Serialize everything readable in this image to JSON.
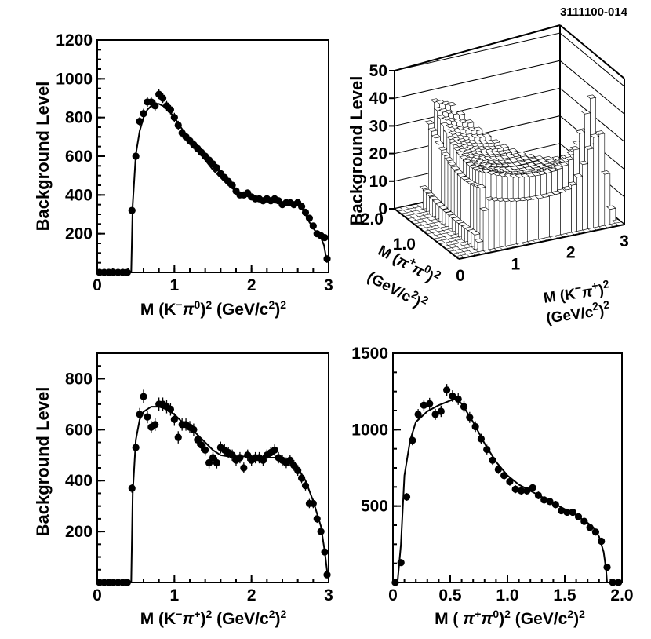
{
  "figure_id": "3111100-014",
  "y_axis_label": "Background Level",
  "chart_data": [
    {
      "id": "p1",
      "type": "scatter",
      "xlabel_parts": [
        "M (K",
        "−",
        "π",
        "0",
        ")",
        "2",
        " (GeV/c",
        "2",
        ")",
        "2"
      ],
      "ylabel": "Background Level",
      "xlim": [
        0,
        3
      ],
      "ylim": [
        0,
        1200
      ],
      "xticks": [
        0,
        1,
        2,
        3
      ],
      "yticks": [
        200,
        400,
        600,
        800,
        1000,
        1200
      ],
      "series": [
        {
          "kind": "points",
          "x": [
            0.03,
            0.09,
            0.15,
            0.21,
            0.27,
            0.33,
            0.39,
            0.45,
            0.5,
            0.55,
            0.6,
            0.65,
            0.7,
            0.75,
            0.8,
            0.85,
            0.9,
            0.95,
            1.0,
            1.05,
            1.1,
            1.15,
            1.2,
            1.25,
            1.3,
            1.35,
            1.4,
            1.45,
            1.5,
            1.55,
            1.6,
            1.65,
            1.7,
            1.75,
            1.8,
            1.85,
            1.9,
            1.95,
            2.0,
            2.05,
            2.1,
            2.15,
            2.2,
            2.25,
            2.3,
            2.35,
            2.4,
            2.45,
            2.5,
            2.55,
            2.6,
            2.65,
            2.7,
            2.75,
            2.8,
            2.85,
            2.9,
            2.95,
            2.98
          ],
          "y": [
            0,
            0,
            0,
            0,
            0,
            0,
            0,
            320,
            600,
            780,
            820,
            880,
            880,
            860,
            920,
            900,
            860,
            840,
            800,
            760,
            720,
            700,
            680,
            660,
            640,
            620,
            600,
            580,
            560,
            540,
            510,
            490,
            470,
            450,
            420,
            400,
            400,
            410,
            390,
            380,
            380,
            370,
            380,
            370,
            380,
            370,
            350,
            360,
            360,
            350,
            360,
            340,
            310,
            280,
            240,
            200,
            190,
            180,
            70
          ],
          "err": [
            0,
            0,
            0,
            0,
            0,
            0,
            0,
            15,
            20,
            22,
            25,
            25,
            25,
            25,
            25,
            25,
            25,
            24,
            24,
            23,
            23,
            22,
            22,
            22,
            21,
            21,
            21,
            20,
            20,
            20,
            19,
            19,
            18,
            18,
            18,
            17,
            17,
            17,
            17,
            17,
            17,
            16,
            16,
            16,
            16,
            16,
            16,
            16,
            16,
            16,
            16,
            16,
            15,
            15,
            14,
            13,
            13,
            12,
            9
          ]
        },
        {
          "kind": "curve",
          "x": [
            0.44,
            0.46,
            0.5,
            0.55,
            0.6,
            0.65,
            0.7,
            0.75,
            0.8,
            0.9,
            1.0,
            1.1,
            1.2,
            1.3,
            1.4,
            1.5,
            1.6,
            1.7,
            1.8,
            1.9,
            2.0,
            2.1,
            2.2,
            2.3,
            2.4,
            2.5,
            2.55,
            2.6,
            2.65,
            2.7,
            2.75,
            2.8,
            2.85,
            2.9,
            2.94,
            2.98
          ],
          "y": [
            0,
            350,
            610,
            730,
            800,
            840,
            860,
            870,
            870,
            850,
            800,
            740,
            690,
            630,
            580,
            530,
            490,
            450,
            420,
            400,
            385,
            375,
            370,
            360,
            360,
            358,
            355,
            350,
            330,
            300,
            260,
            230,
            200,
            180,
            140,
            50
          ]
        }
      ]
    },
    {
      "id": "p2",
      "type": "surface3d",
      "zlabel": "Background Level",
      "xlabel_parts": [
        "M (K",
        "−",
        "π",
        "+",
        ")",
        "2"
      ],
      "xlabel_line2_parts": [
        "(GeV/c",
        "2",
        ")",
        "2"
      ],
      "ylabel_parts": [
        "M (",
        "π",
        "+",
        "π",
        "0",
        ")",
        "2"
      ],
      "ylabel_line2_parts": [
        "(GeV/c",
        "2",
        ")",
        "2"
      ],
      "xlim": [
        0,
        3
      ],
      "ylim": [
        0,
        2.0
      ],
      "zlim": [
        0,
        50
      ],
      "xticks": [
        0,
        1,
        2,
        3
      ],
      "yticks": [
        "1.0",
        "2.0"
      ],
      "zticks": [
        0,
        10,
        20,
        30,
        40,
        50
      ]
    },
    {
      "id": "p3",
      "type": "scatter",
      "xlabel_parts": [
        "M (K",
        "−",
        "π",
        "+",
        ")",
        "2",
        " (GeV/c",
        "2",
        ")",
        "2"
      ],
      "ylabel": "Background Level",
      "xlim": [
        0,
        3
      ],
      "ylim": [
        0,
        900
      ],
      "xticks": [
        0,
        1,
        2,
        3
      ],
      "yticks": [
        200,
        400,
        600,
        800
      ],
      "series": [
        {
          "kind": "points",
          "x": [
            0.03,
            0.09,
            0.15,
            0.21,
            0.27,
            0.33,
            0.39,
            0.45,
            0.5,
            0.55,
            0.6,
            0.65,
            0.7,
            0.75,
            0.8,
            0.85,
            0.9,
            0.95,
            1.0,
            1.05,
            1.1,
            1.15,
            1.2,
            1.25,
            1.3,
            1.35,
            1.4,
            1.45,
            1.5,
            1.55,
            1.6,
            1.65,
            1.7,
            1.75,
            1.8,
            1.85,
            1.9,
            1.95,
            2.0,
            2.05,
            2.1,
            2.15,
            2.2,
            2.25,
            2.3,
            2.35,
            2.4,
            2.45,
            2.5,
            2.55,
            2.6,
            2.65,
            2.7,
            2.75,
            2.8,
            2.85,
            2.9,
            2.95,
            2.98
          ],
          "y": [
            0,
            0,
            0,
            0,
            0,
            0,
            0,
            370,
            530,
            660,
            730,
            650,
            610,
            620,
            700,
            700,
            690,
            680,
            640,
            570,
            620,
            620,
            610,
            600,
            560,
            540,
            520,
            470,
            490,
            470,
            530,
            520,
            510,
            500,
            480,
            490,
            450,
            500,
            480,
            490,
            490,
            480,
            500,
            510,
            520,
            490,
            480,
            470,
            480,
            460,
            440,
            410,
            380,
            310,
            310,
            250,
            200,
            120,
            30
          ],
          "err": [
            0,
            0,
            0,
            0,
            0,
            0,
            0,
            18,
            22,
            25,
            27,
            25,
            24,
            25,
            26,
            26,
            26,
            25,
            25,
            24,
            24,
            24,
            24,
            24,
            23,
            23,
            22,
            22,
            22,
            22,
            23,
            23,
            22,
            22,
            22,
            22,
            21,
            22,
            22,
            22,
            22,
            22,
            22,
            22,
            22,
            22,
            22,
            21,
            21,
            21,
            21,
            20,
            19,
            18,
            18,
            16,
            15,
            12,
            8
          ]
        },
        {
          "kind": "curve",
          "x": [
            0.44,
            0.46,
            0.5,
            0.55,
            0.6,
            0.7,
            0.8,
            0.9,
            1.0,
            1.1,
            1.2,
            1.3,
            1.4,
            1.5,
            1.6,
            1.7,
            1.8,
            1.9,
            2.0,
            2.1,
            2.2,
            2.3,
            2.4,
            2.5,
            2.6,
            2.7,
            2.8,
            2.9,
            2.95,
            2.99
          ],
          "y": [
            0,
            350,
            560,
            640,
            670,
            690,
            690,
            680,
            660,
            630,
            610,
            580,
            550,
            520,
            500,
            495,
            495,
            495,
            495,
            495,
            490,
            490,
            480,
            470,
            450,
            400,
            320,
            220,
            120,
            20
          ]
        }
      ]
    },
    {
      "id": "p4",
      "type": "scatter",
      "xlabel_parts": [
        "M ( ",
        "π",
        "+",
        "π",
        "0",
        ")",
        "2",
        " (GeV/c",
        "2",
        ")",
        "2"
      ],
      "ylabel": "",
      "xlim": [
        0,
        2.0
      ],
      "ylim": [
        0,
        1500
      ],
      "xticks": [
        0,
        0.5,
        1.0,
        1.5,
        2.0
      ],
      "xtick_labels": [
        "0",
        "0.5",
        "1.0",
        "1.5",
        "2.0"
      ],
      "yticks": [
        500,
        1000,
        1500
      ],
      "series": [
        {
          "kind": "points",
          "x": [
            0.02,
            0.07,
            0.12,
            0.17,
            0.22,
            0.27,
            0.32,
            0.37,
            0.42,
            0.47,
            0.52,
            0.57,
            0.62,
            0.67,
            0.72,
            0.77,
            0.82,
            0.87,
            0.92,
            0.97,
            1.02,
            1.07,
            1.12,
            1.17,
            1.22,
            1.27,
            1.32,
            1.37,
            1.42,
            1.47,
            1.52,
            1.57,
            1.62,
            1.67,
            1.72,
            1.77,
            1.82,
            1.87,
            1.92,
            1.97
          ],
          "y": [
            0,
            130,
            560,
            930,
            1100,
            1160,
            1170,
            1100,
            1120,
            1260,
            1220,
            1200,
            1150,
            1080,
            1020,
            940,
            870,
            800,
            740,
            700,
            660,
            610,
            600,
            600,
            620,
            570,
            540,
            530,
            510,
            470,
            460,
            460,
            430,
            400,
            360,
            330,
            270,
            100,
            0,
            0
          ],
          "err": [
            0,
            15,
            25,
            32,
            35,
            37,
            38,
            36,
            37,
            39,
            38,
            38,
            37,
            36,
            35,
            33,
            32,
            30,
            29,
            28,
            27,
            26,
            26,
            26,
            26,
            25,
            24,
            24,
            24,
            23,
            22,
            22,
            22,
            21,
            20,
            19,
            17,
            11,
            0,
            0
          ]
        },
        {
          "kind": "curve",
          "x": [
            0.04,
            0.07,
            0.1,
            0.15,
            0.2,
            0.3,
            0.4,
            0.5,
            0.55,
            0.6,
            0.7,
            0.8,
            0.9,
            1.0,
            1.1,
            1.2,
            1.3,
            1.4,
            1.5,
            1.6,
            1.7,
            1.75,
            1.8,
            1.84,
            1.86,
            1.87
          ],
          "y": [
            0,
            250,
            700,
            930,
            1050,
            1120,
            1160,
            1190,
            1200,
            1170,
            1050,
            910,
            790,
            700,
            640,
            600,
            560,
            520,
            480,
            440,
            390,
            360,
            300,
            200,
            90,
            0
          ]
        }
      ]
    }
  ]
}
